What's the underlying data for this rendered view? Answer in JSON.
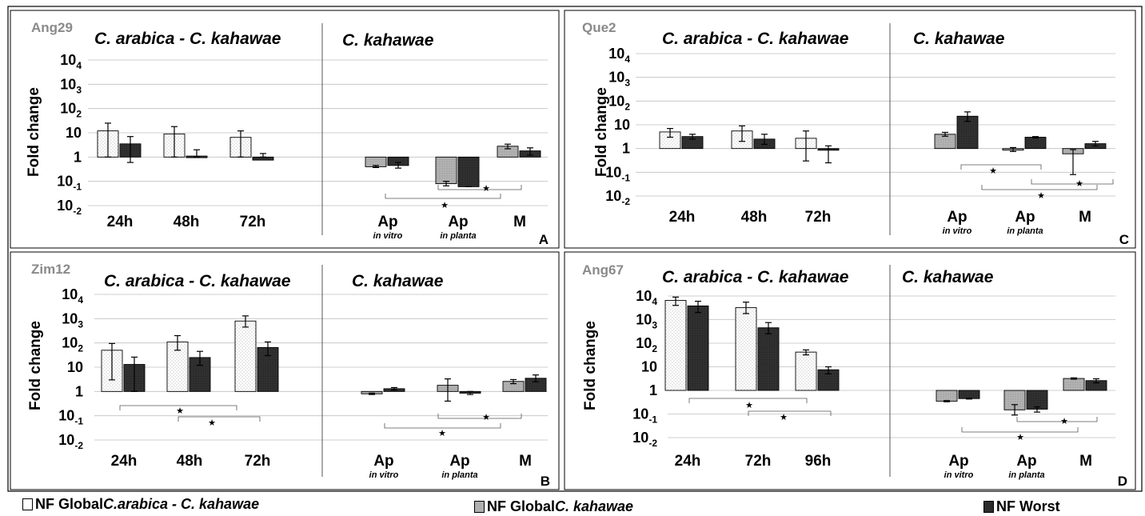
{
  "chart_data": [
    {
      "type": "bar",
      "panel_letter": "A",
      "gene": "Ang29",
      "ylabel": "Fold change",
      "yscale": "log",
      "ylim": [
        0.01,
        10000
      ],
      "yticks": [
        "10-2",
        "10-1",
        "1",
        "10",
        "102",
        "103",
        "104"
      ],
      "grid": true,
      "groups": [
        {
          "title": "C. arabica - C. kahawae",
          "categories": [
            {
              "label": "24h",
              "sub": ""
            },
            {
              "label": "48h",
              "sub": ""
            },
            {
              "label": "72h",
              "sub": ""
            }
          ],
          "bars": [
            [
              {
                "series": "NF Global C.arabica - C. kahawae",
                "value": 12,
                "err": [
                  1,
                  25
                ]
              },
              {
                "series": "NF Worst",
                "value": 3.5,
                "err": [
                  0.6,
                  7
                ]
              }
            ],
            [
              {
                "series": "NF Global C.arabica - C. kahawae",
                "value": 9,
                "err": [
                  1,
                  18
                ]
              },
              {
                "series": "NF Worst",
                "value": 1.1,
                "err": [
                  1,
                  2
                ]
              }
            ],
            [
              {
                "series": "NF Global C.arabica - C. kahawae",
                "value": 6.5,
                "err": [
                  1,
                  12
                ]
              },
              {
                "series": "NF Worst",
                "value": 0.75,
                "err": [
                  1,
                  1.4
                ]
              }
            ]
          ]
        },
        {
          "title": "C. kahawae",
          "categories": [
            {
              "label": "Ap",
              "sub": "in vitro"
            },
            {
              "label": "Ap",
              "sub": "in planta"
            },
            {
              "label": "M",
              "sub": ""
            }
          ],
          "bars": [
            [
              {
                "series": "NF Global C. kahawae",
                "value": 0.4,
                "err": [
                  0.37,
                  0.45
                ]
              },
              {
                "series": "NF Worst",
                "value": 0.45,
                "err": [
                  0.35,
                  0.6
                ]
              }
            ],
            [
              {
                "series": "NF Global C. kahawae",
                "value": 0.08,
                "err": [
                  0.065,
                  0.1
                ]
              },
              {
                "series": "NF Worst",
                "value": 0.06,
                "err": [
                  0.06,
                  0.06
                ]
              }
            ],
            [
              {
                "series": "NF Global C. kahawae",
                "value": 2.8,
                "err": [
                  2.2,
                  3.4
                ]
              },
              {
                "series": "NF Worst",
                "value": 1.8,
                "err": [
                  1.2,
                  2.4
                ]
              }
            ]
          ]
        }
      ]
    },
    {
      "type": "bar",
      "panel_letter": "B",
      "gene": "Zim12",
      "ylabel": "Fold change",
      "yscale": "log",
      "ylim": [
        0.01,
        10000
      ],
      "yticks": [
        "10-2",
        "10-1",
        "1",
        "10",
        "102",
        "103",
        "104"
      ],
      "grid": true,
      "groups": [
        {
          "title": "C. arabica - C. kahawae",
          "categories": [
            {
              "label": "24h",
              "sub": ""
            },
            {
              "label": "48h",
              "sub": ""
            },
            {
              "label": "72h",
              "sub": ""
            }
          ],
          "bars": [
            [
              {
                "series": "NF Global C.arabica - C. kahawae",
                "value": 50,
                "err": [
                  3,
                  95
                ]
              },
              {
                "series": "NF Worst",
                "value": 13,
                "err": [
                  1,
                  26
                ]
              }
            ],
            [
              {
                "series": "NF Global C.arabica - C. kahawae",
                "value": 110,
                "err": [
                  50,
                  200
                ]
              },
              {
                "series": "NF Worst",
                "value": 25,
                "err": [
                  12,
                  45
                ]
              }
            ],
            [
              {
                "series": "NF Global C.arabica - C. kahawae",
                "value": 800,
                "err": [
                  450,
                  1300
                ]
              },
              {
                "series": "NF Worst",
                "value": 65,
                "err": [
                  30,
                  110
                ]
              }
            ]
          ]
        },
        {
          "title": "C. kahawae",
          "categories": [
            {
              "label": "Ap",
              "sub": "in vitro"
            },
            {
              "label": "Ap",
              "sub": "in planta"
            },
            {
              "label": "M",
              "sub": ""
            }
          ],
          "bars": [
            [
              {
                "series": "NF Global C. kahawae",
                "value": 0.8,
                "err": [
                  0.75,
                  0.85
                ]
              },
              {
                "series": "NF Worst",
                "value": 1.3,
                "err": [
                  1.15,
                  1.45
                ]
              }
            ],
            [
              {
                "series": "NF Global C. kahawae",
                "value": 1.8,
                "err": [
                  0.4,
                  3.3
                ]
              },
              {
                "series": "NF Worst",
                "value": 0.85,
                "err": [
                  0.75,
                  1
                ]
              }
            ],
            [
              {
                "series": "NF Global C. kahawae",
                "value": 2.6,
                "err": [
                  2.1,
                  3.1
                ]
              },
              {
                "series": "NF Worst",
                "value": 3.5,
                "err": [
                  2.5,
                  4.8
                ]
              }
            ]
          ]
        }
      ]
    },
    {
      "type": "bar",
      "panel_letter": "C",
      "gene": "Que2",
      "ylabel": "Fold change",
      "yscale": "log",
      "ylim": [
        0.01,
        10000
      ],
      "yticks": [
        "10-2",
        "10-1",
        "1",
        "10",
        "102",
        "103",
        "104"
      ],
      "grid": true,
      "groups": [
        {
          "title": "C. arabica - C. kahawae",
          "categories": [
            {
              "label": "24h",
              "sub": ""
            },
            {
              "label": "48h",
              "sub": ""
            },
            {
              "label": "72h",
              "sub": ""
            }
          ],
          "bars": [
            [
              {
                "series": "NF Global C.arabica - C. kahawae",
                "value": 5,
                "err": [
                  3,
                  7
                ]
              },
              {
                "series": "NF Worst",
                "value": 3.2,
                "err": [
                  2.5,
                  4
                ]
              }
            ],
            [
              {
                "series": "NF Global C.arabica - C. kahawae",
                "value": 5.5,
                "err": [
                  2,
                  9
                ]
              },
              {
                "series": "NF Worst",
                "value": 2.5,
                "err": [
                  1.5,
                  4
                ]
              }
            ],
            [
              {
                "series": "NF Global C.arabica - C. kahawae",
                "value": 2.7,
                "err": [
                  0.3,
                  5.5
                ]
              },
              {
                "series": "NF Worst",
                "value": 0.85,
                "err": [
                  0.25,
                  1.3
                ]
              }
            ]
          ]
        },
        {
          "title": "C. kahawae",
          "categories": [
            {
              "label": "Ap",
              "sub": "in vitro"
            },
            {
              "label": "Ap",
              "sub": "in planta"
            },
            {
              "label": "M",
              "sub": ""
            }
          ],
          "bars": [
            [
              {
                "series": "NF Global C. kahawae",
                "value": 4,
                "err": [
                  3.3,
                  4.8
                ]
              },
              {
                "series": "NF Worst",
                "value": 23,
                "err": [
                  14,
                  35
                ]
              }
            ],
            [
              {
                "series": "NF Global C. kahawae",
                "value": 0.9,
                "err": [
                  0.75,
                  1.1
                ]
              },
              {
                "series": "NF Worst",
                "value": 3,
                "err": [
                  2.8,
                  3.2
                ]
              }
            ],
            [
              {
                "series": "NF Global C. kahawae",
                "value": 0.6,
                "err": [
                  0.08,
                  0.9
                ]
              },
              {
                "series": "NF Worst",
                "value": 1.6,
                "err": [
                  1.3,
                  2
                ]
              }
            ]
          ]
        }
      ]
    },
    {
      "type": "bar",
      "panel_letter": "D",
      "gene": "Ang67",
      "ylabel": "Fold change",
      "yscale": "log",
      "ylim": [
        0.01,
        10000
      ],
      "yticks": [
        "10-2",
        "10-1",
        "1",
        "10",
        "102",
        "103",
        "104"
      ],
      "grid": true,
      "groups": [
        {
          "title": "C. arabica - C. kahawae",
          "categories": [
            {
              "label": "24h",
              "sub": ""
            },
            {
              "label": "72h",
              "sub": ""
            },
            {
              "label": "96h",
              "sub": ""
            }
          ],
          "bars": [
            [
              {
                "series": "NF Global C.arabica - C. kahawae",
                "value": 6500,
                "err": [
                  4000,
                  9000
                ]
              },
              {
                "series": "NF Worst",
                "value": 3800,
                "err": [
                  2000,
                  6000
                ]
              }
            ],
            [
              {
                "series": "NF Global C.arabica - C. kahawae",
                "value": 3200,
                "err": [
                  1800,
                  5500
                ]
              },
              {
                "series": "NF Worst",
                "value": 450,
                "err": [
                  250,
                  750
                ]
              }
            ],
            [
              {
                "series": "NF Global C.arabica - C. kahawae",
                "value": 42,
                "err": [
                  32,
                  52
                ]
              },
              {
                "series": "NF Worst",
                "value": 7.5,
                "err": [
                  5,
                  10
                ]
              }
            ]
          ]
        },
        {
          "title": "C. kahawae",
          "categories": [
            {
              "label": "Ap",
              "sub": "in vitro"
            },
            {
              "label": "Ap",
              "sub": "in planta"
            },
            {
              "label": "M",
              "sub": ""
            }
          ],
          "bars": [
            [
              {
                "series": "NF Global C. kahawae",
                "value": 0.35,
                "err": [
                  0.33,
                  0.37
                ]
              },
              {
                "series": "NF Worst",
                "value": 0.45,
                "err": [
                  0.43,
                  0.47
                ]
              }
            ],
            [
              {
                "series": "NF Global C. kahawae",
                "value": 0.15,
                "err": [
                  0.09,
                  0.25
                ]
              },
              {
                "series": "NF Worst",
                "value": 0.16,
                "err": [
                  0.12,
                  0.2
                ]
              }
            ],
            [
              {
                "series": "NF Global C. kahawae",
                "value": 3.2,
                "err": [
                  3,
                  3.4
                ]
              },
              {
                "series": "NF Worst",
                "value": 2.6,
                "err": [
                  2.1,
                  3.1
                ]
              }
            ]
          ]
        }
      ]
    }
  ],
  "legend": [
    {
      "prefix": "NF Global ",
      "italic": "C.arabica - C. kahawae",
      "color": "#ffffff"
    },
    {
      "prefix": "NF Global ",
      "italic": "C. kahawae",
      "color": "#b0b0b0"
    },
    {
      "prefix": "NF Worst",
      "italic": "",
      "color": "#2b2b2b"
    }
  ],
  "significance_marker": "★",
  "colors": {
    "nf_global_arabica": "#ffffff",
    "nf_global_kahawae": "#b0b0b0",
    "nf_worst": "#2b2b2b",
    "grid": "#bfbfbf",
    "gene_label": "#8a8a8a"
  }
}
